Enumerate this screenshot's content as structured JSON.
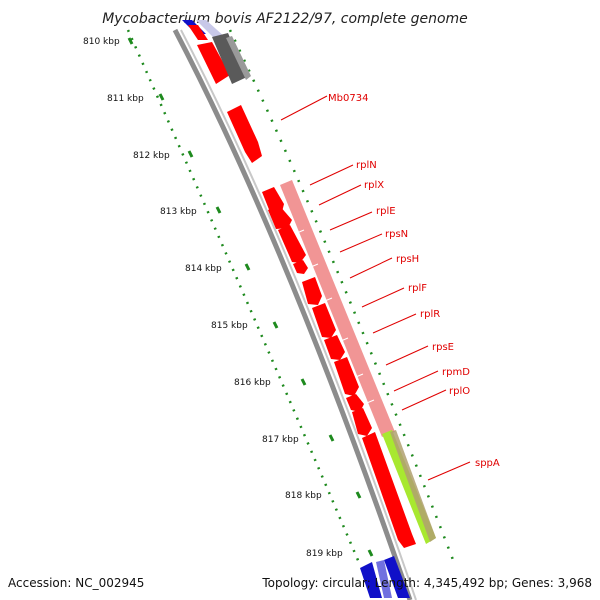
{
  "title": "Mycobacterium bovis AF2122/97, complete genome",
  "footer": {
    "accession": "Accession: NC_002945",
    "summary": "Topology: circular; Length: 4,345,492 bp; Genes: 3,968"
  },
  "kbp_ticks": [
    "810 kbp",
    "811 kbp",
    "812 kbp",
    "813 kbp",
    "814 kbp",
    "815 kbp",
    "816 kbp",
    "817 kbp",
    "818 kbp",
    "819 kbp"
  ],
  "gene_labels": [
    "Mb0734",
    "rplN",
    "rplX",
    "rplE",
    "rpsN",
    "rpsH",
    "rplF",
    "rplR",
    "rpsE",
    "rpmD",
    "rplO",
    "sppA"
  ],
  "colors": {
    "cds": "#ff0000",
    "cds_light": "#f08a8a",
    "backbone": "#8c8c8c",
    "ruler": "#1e8a1e",
    "label": "#e00000",
    "dark_gene": "#5a5a5a",
    "blue_gene": "#1010c8",
    "lime_gene": "#a8e830",
    "tan_gene": "#b0a070"
  }
}
